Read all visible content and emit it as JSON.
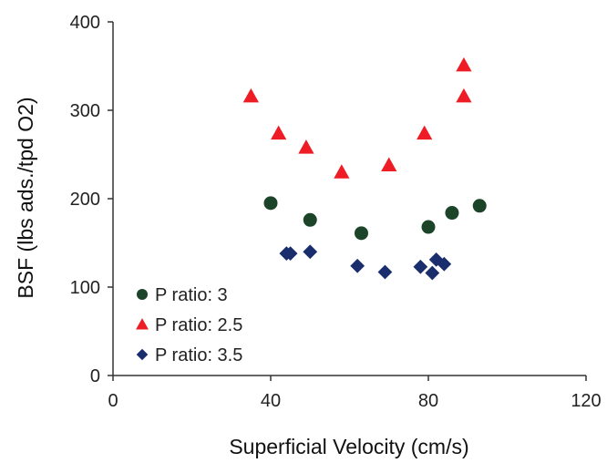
{
  "chart_data": {
    "type": "scatter",
    "xlabel": "Superficial Velocity  (cm/s)",
    "ylabel": "BSF  (lbs ads./tpd O2)",
    "xlim": [
      0,
      120
    ],
    "ylim": [
      0,
      400
    ],
    "xticks": [
      "0",
      "40",
      "80",
      "120"
    ],
    "yticks": [
      "0",
      "100",
      "200",
      "300",
      "400"
    ],
    "grid": false,
    "legend_position": "bottom-left",
    "series": [
      {
        "name": "P ratio: 3",
        "marker": "circle",
        "color": "#1b4429",
        "points": [
          [
            40,
            195
          ],
          [
            50,
            176
          ],
          [
            63,
            161
          ],
          [
            80,
            168
          ],
          [
            86,
            184
          ],
          [
            93,
            192
          ]
        ]
      },
      {
        "name": "P ratio: 2.5",
        "marker": "triangle",
        "color": "#ee1c24",
        "points": [
          [
            35,
            316
          ],
          [
            42,
            274
          ],
          [
            49,
            258
          ],
          [
            58,
            230
          ],
          [
            70,
            238
          ],
          [
            79,
            274
          ],
          [
            89,
            316
          ],
          [
            89,
            351
          ]
        ]
      },
      {
        "name": "P ratio: 3.5",
        "marker": "diamond",
        "color": "#1a2e6e",
        "points": [
          [
            44,
            138
          ],
          [
            45,
            138
          ],
          [
            50,
            140
          ],
          [
            62,
            124
          ],
          [
            69,
            117
          ],
          [
            78,
            123
          ],
          [
            81,
            116
          ],
          [
            82,
            131
          ],
          [
            84,
            126
          ]
        ]
      }
    ]
  }
}
